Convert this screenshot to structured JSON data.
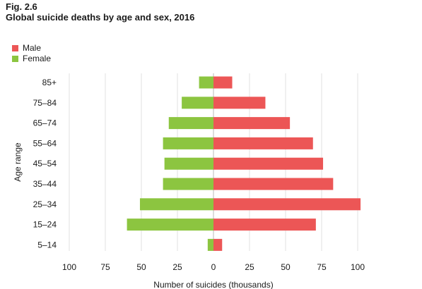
{
  "figure_label": "Fig. 2.6",
  "chart_data": {
    "type": "bar",
    "orientation": "horizontal",
    "subtype": "population-pyramid",
    "title": "Global suicide deaths by age and sex, 2016",
    "xlabel": "Number of suicides (thousands)",
    "ylabel": "Age range",
    "xlim": [
      -100,
      100
    ],
    "x_ticks": [
      -100,
      -75,
      -50,
      -25,
      0,
      25,
      50,
      75,
      100
    ],
    "x_tick_labels": [
      "100",
      "75",
      "50",
      "25",
      "0",
      "25",
      "50",
      "75",
      "100"
    ],
    "grid": "vertical",
    "legend_position": "top-left",
    "categories": [
      "85+",
      "75–84",
      "65–74",
      "55–64",
      "45–54",
      "35–44",
      "25–34",
      "15–24",
      "5–14"
    ],
    "series": [
      {
        "name": "Male",
        "color": "#ec5656",
        "side": "right",
        "values": [
          13,
          36,
          53,
          69,
          76,
          83,
          102,
          71,
          6
        ]
      },
      {
        "name": "Female",
        "color": "#8cc540",
        "side": "left",
        "values": [
          10,
          22,
          31,
          35,
          34,
          35,
          51,
          60,
          4
        ]
      }
    ]
  }
}
